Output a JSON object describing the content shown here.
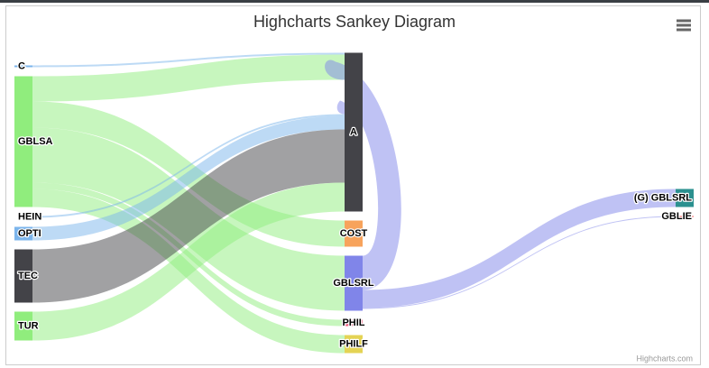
{
  "chart_data": {
    "type": "sankey",
    "title": "Highcharts Sankey Diagram",
    "credits": "Highcharts.com",
    "columns": [
      [
        {
          "name": "C",
          "color": "#7cb5ec"
        },
        {
          "name": "GBLSA",
          "color": "#90ed7d"
        },
        {
          "name": "HEIN",
          "color": "#ffffff"
        },
        {
          "name": "OPTI",
          "color": "#7cb5ec"
        },
        {
          "name": "TEC",
          "color": "#434348"
        },
        {
          "name": "TUR",
          "color": "#90ed7d"
        }
      ],
      [
        {
          "name": "A",
          "color": "#434348"
        },
        {
          "name": "COST",
          "color": "#f7a35c"
        },
        {
          "name": "GBLSRL",
          "color": "#8085e9"
        },
        {
          "name": "PHIL",
          "color": "#f15c80"
        },
        {
          "name": "PHILF",
          "color": "#e4d354"
        }
      ],
      [
        {
          "name": "(G) GBLSRL",
          "color": "#2b908f"
        },
        {
          "name": "GBLIE",
          "color": "#f45b5b"
        }
      ]
    ],
    "links": [
      {
        "from": "C",
        "to": "A",
        "weight": 2,
        "color": "#7cb5ec"
      },
      {
        "from": "GBLSA",
        "to": "A",
        "weight": 28,
        "color": "#90ed7d"
      },
      {
        "from": "GBLSRL",
        "to": "A",
        "weight": 38,
        "color": "#8085e9"
      },
      {
        "from": "GBLSA",
        "to": "COST",
        "weight": 29,
        "color": "#90ed7d"
      },
      {
        "from": "GBLSA",
        "to": "GBLSRL",
        "weight": 61,
        "color": "#90ed7d"
      },
      {
        "from": "GBLSA",
        "to": "PHIL",
        "weight": 7,
        "color": "#90ed7d"
      },
      {
        "from": "GBLSA",
        "to": "PHILF",
        "weight": 20,
        "color": "#90ed7d"
      },
      {
        "from": "HEIN",
        "to": "A",
        "weight": 2,
        "color": "#7cb5ec"
      },
      {
        "from": "OPTI",
        "to": "A",
        "weight": 15,
        "color": "#7cb5ec"
      },
      {
        "from": "TEC",
        "to": "A",
        "weight": 59,
        "color": "#434348"
      },
      {
        "from": "TUR",
        "to": "A",
        "weight": 32,
        "color": "#90ed7d"
      },
      {
        "from": "GBLSRL",
        "to": "(G) GBLSRL",
        "weight": 20,
        "color": "#8085e9"
      },
      {
        "from": "GBLSRL",
        "to": "GBLIE",
        "weight": 1,
        "color": "#8085e9"
      }
    ]
  }
}
